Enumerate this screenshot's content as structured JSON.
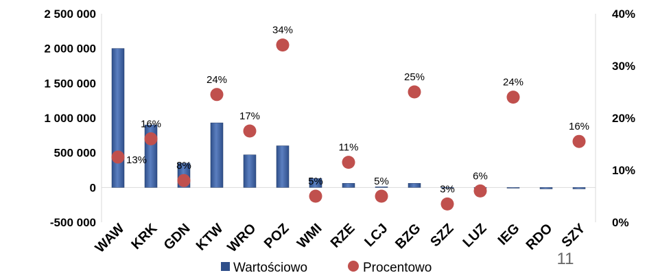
{
  "page_number": "11",
  "chart_data": {
    "type": "bar+scatter",
    "title": "",
    "categories": [
      "WAW",
      "KRK",
      "GDN",
      "KTW",
      "WRO",
      "POZ",
      "WMI",
      "RZE",
      "LCJ",
      "BZG",
      "SZZ",
      "LUZ",
      "IEG",
      "RDO",
      "SZY"
    ],
    "series": [
      {
        "name": "Wartościowo",
        "type": "bar",
        "axis": "left",
        "values": [
          2000000,
          900000,
          350000,
          930000,
          470000,
          600000,
          130000,
          60000,
          10000,
          60000,
          -10000,
          0,
          -10000,
          -20000,
          -20000
        ]
      },
      {
        "name": "Procentowo",
        "type": "scatter",
        "axis": "right",
        "values": [
          12.5,
          16,
          8,
          24.5,
          17.5,
          34,
          5,
          11.5,
          5,
          25,
          3.5,
          6,
          24,
          null,
          15.5
        ],
        "labels": [
          "13%",
          "16%",
          "8%",
          "24%",
          "17%",
          "34%",
          "5%",
          "11%",
          "5%",
          "25%",
          "3%",
          "6%",
          "24%",
          "",
          "16%"
        ]
      }
    ],
    "y_left": {
      "range": [
        -500000,
        2500000
      ],
      "ticks": [
        2500000,
        2000000,
        1500000,
        1000000,
        500000,
        0,
        -500000
      ],
      "tick_labels": [
        "2 500 000",
        "2 000 000",
        "1 500 000",
        "1 000 000",
        "500 000",
        "0",
        "-500 000"
      ]
    },
    "y_right": {
      "range": [
        0,
        40
      ],
      "ticks": [
        40,
        30,
        20,
        10,
        0
      ],
      "tick_labels": [
        "40%",
        "30%",
        "20%",
        "10%",
        "0%"
      ]
    },
    "legend": {
      "position": "bottom",
      "entries": [
        "Wartościowo",
        "Procentowo"
      ]
    },
    "colors": {
      "bar": "#2f4f8a",
      "bar_light": "#5b7fc0",
      "dot": "#c0504d"
    }
  }
}
